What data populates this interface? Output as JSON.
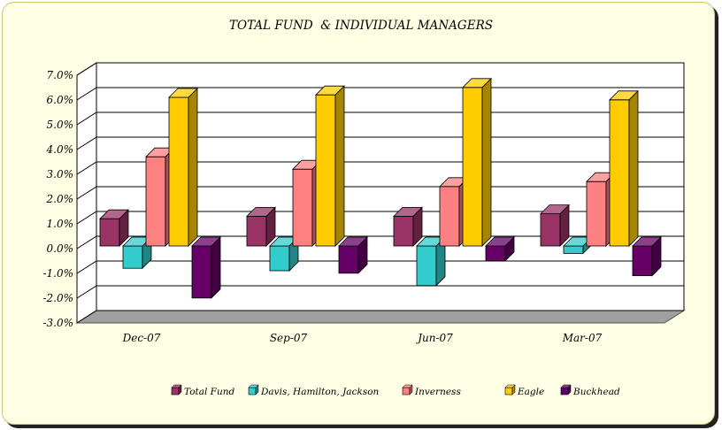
{
  "chart_data": {
    "type": "bar",
    "title": "TOTAL FUND  & INDIVIDUAL MANAGERS",
    "xlabel": "",
    "ylabel": "",
    "categories": [
      "Dec-07",
      "Sep-07",
      "Jun-07",
      "Mar-07"
    ],
    "ylim": [
      -3.0,
      7.0
    ],
    "yticks": [
      "-3.0%",
      "-2.0%",
      "-1.0%",
      "0.0%",
      "1.0%",
      "2.0%",
      "3.0%",
      "4.0%",
      "5.0%",
      "6.0%",
      "7.0%"
    ],
    "grid": true,
    "legend_position": "bottom",
    "series": [
      {
        "name": "Total Fund",
        "values": [
          1.1,
          1.2,
          1.2,
          1.3
        ]
      },
      {
        "name": "Davis, Hamilton, Jackson",
        "values": [
          -0.9,
          -1.0,
          -1.6,
          -0.3
        ]
      },
      {
        "name": "Inverness",
        "values": [
          3.6,
          3.1,
          2.4,
          2.6
        ]
      },
      {
        "name": "Eagle",
        "values": [
          6.0,
          6.1,
          6.4,
          5.9
        ]
      },
      {
        "name": "Buckhead",
        "values": [
          -2.1,
          -1.1,
          -0.6,
          -1.2
        ]
      }
    ],
    "colors": {
      "Total Fund": "#993366",
      "Davis, Hamilton, Jackson": "#33cccc",
      "Inverness": "#ff8080",
      "Eagle": "#ffcc00",
      "Buckhead": "#660066",
      "floor": "#a0a0a0",
      "background": "#ffffe6"
    }
  }
}
